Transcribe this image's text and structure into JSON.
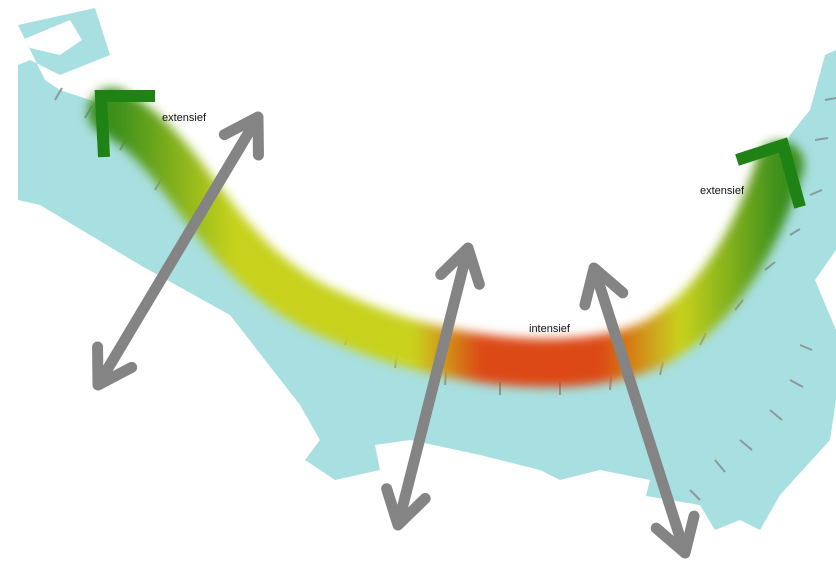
{
  "labels": {
    "left": "extensief",
    "center": "intensief",
    "right": "extensief"
  },
  "colors": {
    "water": "#a8dfe0",
    "extensive": "#3c8f1e",
    "transition": "#c8d21e",
    "intensive": "#dc4a14",
    "bracket": "#1e8214",
    "arrow": "#848484",
    "groyne": "#8a9a9a"
  }
}
